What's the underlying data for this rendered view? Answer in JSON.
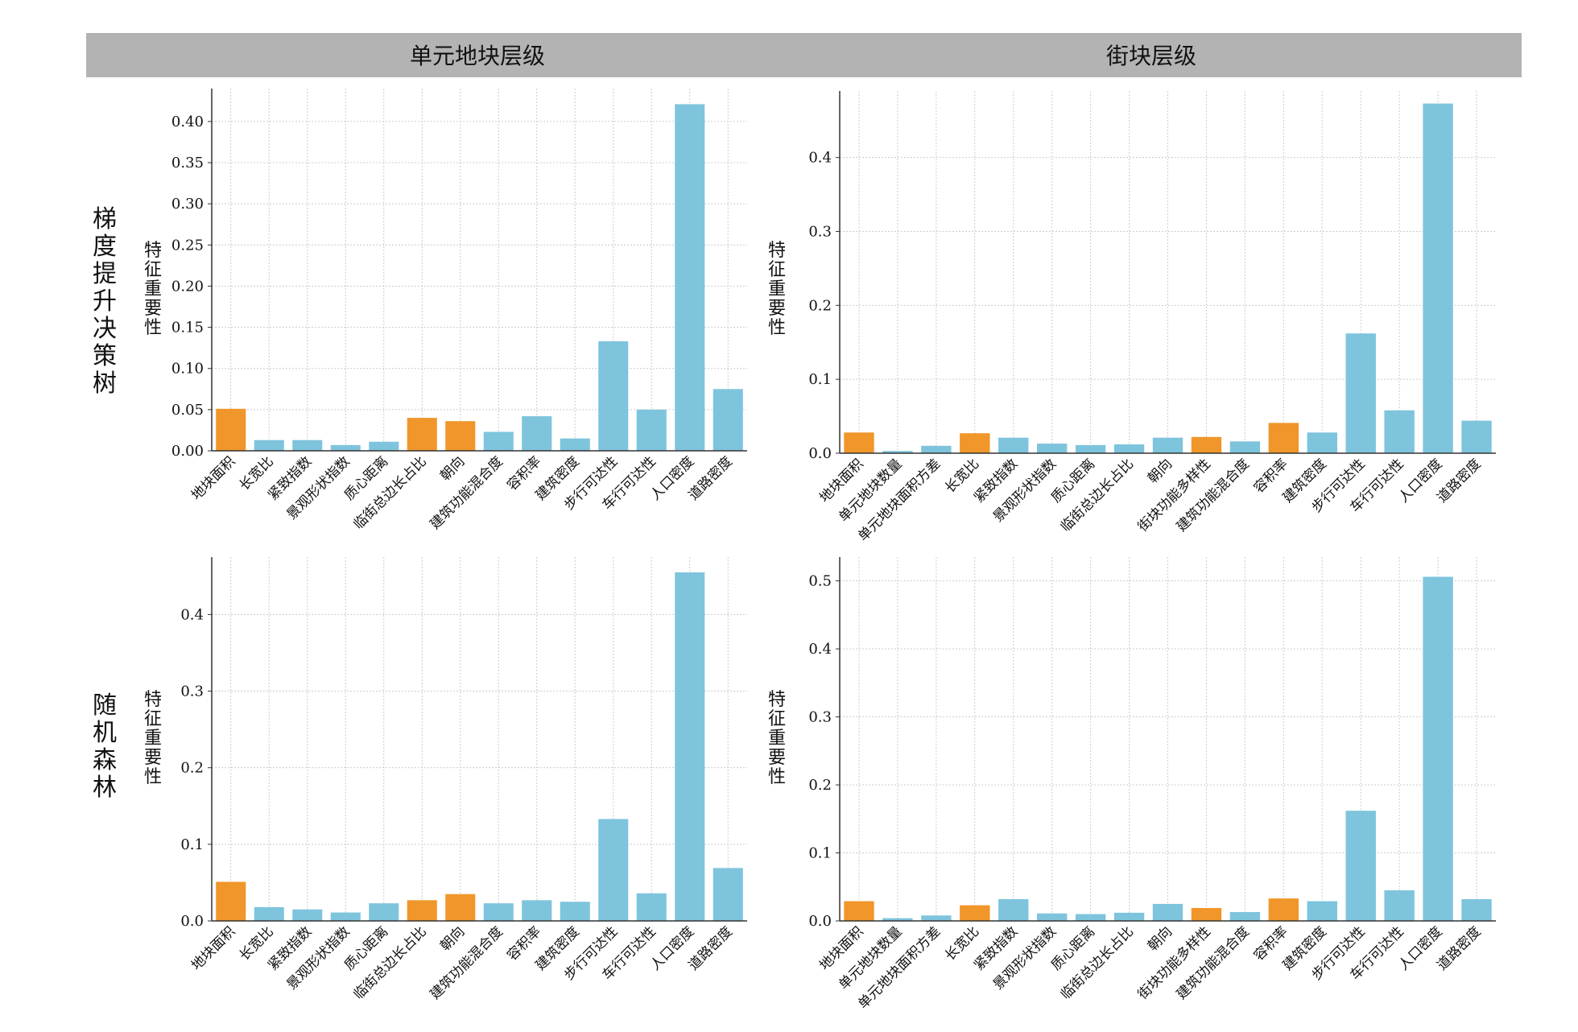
{
  "column_titles": [
    "单元地块层级",
    "街块层级"
  ],
  "row_titles": [
    "梯度提升决策树",
    "随机森林"
  ],
  "colors": {
    "orange": "#f0962a",
    "blue": "#7ec4dc",
    "header": "#b3b3b3",
    "grid": "#cccccc"
  },
  "chart_data": [
    {
      "type": "bar",
      "row": "梯度提升决策树",
      "column": "单元地块层级",
      "ylabel": "特征重要性",
      "ylim": [
        0,
        0.44
      ],
      "yticks": [
        0.0,
        0.05,
        0.1,
        0.15,
        0.2,
        0.25,
        0.3,
        0.35,
        0.4
      ],
      "ytick_labels": [
        "0.00",
        "0.05",
        "0.10",
        "0.15",
        "0.20",
        "0.25",
        "0.30",
        "0.35",
        "0.40"
      ],
      "grid": true,
      "categories": [
        "地块面积",
        "长宽比",
        "紧致指数",
        "景观形状指数",
        "质心距离",
        "临街总边长占比",
        "朝向",
        "建筑功能混合度",
        "容积率",
        "建筑密度",
        "步行可达性",
        "车行可达性",
        "人口密度",
        "道路密度"
      ],
      "values": [
        0.051,
        0.013,
        0.013,
        0.007,
        0.011,
        0.04,
        0.036,
        0.023,
        0.042,
        0.015,
        0.133,
        0.05,
        0.421,
        0.075
      ],
      "colors": [
        "orange",
        "blue",
        "blue",
        "blue",
        "blue",
        "orange",
        "orange",
        "blue",
        "blue",
        "blue",
        "blue",
        "blue",
        "blue",
        "blue"
      ]
    },
    {
      "type": "bar",
      "row": "梯度提升决策树",
      "column": "街块层级",
      "ylabel": "特征重要性",
      "ylim": [
        0,
        0.49
      ],
      "yticks": [
        0.0,
        0.1,
        0.2,
        0.3,
        0.4
      ],
      "ytick_labels": [
        "0.0",
        "0.1",
        "0.2",
        "0.3",
        "0.4"
      ],
      "grid": true,
      "categories": [
        "地块面积",
        "单元地块数量",
        "单元地块面积方差",
        "长宽比",
        "紧致指数",
        "景观形状指数",
        "质心距离",
        "临街总边长占比",
        "朝向",
        "街块功能多样性",
        "建筑功能混合度",
        "容积率",
        "建筑密度",
        "步行可达性",
        "车行可达性",
        "人口密度",
        "道路密度"
      ],
      "values": [
        0.028,
        0.003,
        0.01,
        0.027,
        0.021,
        0.013,
        0.011,
        0.012,
        0.021,
        0.022,
        0.016,
        0.041,
        0.028,
        0.162,
        0.058,
        0.473,
        0.044
      ],
      "colors": [
        "orange",
        "blue",
        "blue",
        "orange",
        "blue",
        "blue",
        "blue",
        "blue",
        "blue",
        "orange",
        "blue",
        "orange",
        "blue",
        "blue",
        "blue",
        "blue",
        "blue"
      ]
    },
    {
      "type": "bar",
      "row": "随机森林",
      "column": "单元地块层级",
      "ylabel": "特征重要性",
      "ylim": [
        0,
        0.475
      ],
      "yticks": [
        0.0,
        0.1,
        0.2,
        0.3,
        0.4
      ],
      "ytick_labels": [
        "0.0",
        "0.1",
        "0.2",
        "0.3",
        "0.4"
      ],
      "grid": true,
      "categories": [
        "地块面积",
        "长宽比",
        "紧致指数",
        "景观形状指数",
        "质心距离",
        "临街总边长占比",
        "朝向",
        "建筑功能混合度",
        "容积率",
        "建筑密度",
        "步行可达性",
        "车行可达性",
        "人口密度",
        "道路密度"
      ],
      "values": [
        0.051,
        0.018,
        0.015,
        0.011,
        0.023,
        0.027,
        0.035,
        0.023,
        0.027,
        0.025,
        0.133,
        0.036,
        0.455,
        0.069
      ],
      "colors": [
        "orange",
        "blue",
        "blue",
        "blue",
        "blue",
        "orange",
        "orange",
        "blue",
        "blue",
        "blue",
        "blue",
        "blue",
        "blue",
        "blue"
      ]
    },
    {
      "type": "bar",
      "row": "随机森林",
      "column": "街块层级",
      "ylabel": "特征重要性",
      "ylim": [
        0,
        0.535
      ],
      "yticks": [
        0.0,
        0.1,
        0.2,
        0.3,
        0.4,
        0.5
      ],
      "ytick_labels": [
        "0.0",
        "0.1",
        "0.2",
        "0.3",
        "0.4",
        "0.5"
      ],
      "grid": true,
      "categories": [
        "地块面积",
        "单元地块数量",
        "单元地块面积方差",
        "长宽比",
        "紧致指数",
        "景观形状指数",
        "质心距离",
        "临街总边长占比",
        "朝向",
        "街块功能多样性",
        "建筑功能混合度",
        "容积率",
        "建筑密度",
        "步行可达性",
        "车行可达性",
        "人口密度",
        "道路密度"
      ],
      "values": [
        0.029,
        0.004,
        0.008,
        0.023,
        0.032,
        0.011,
        0.01,
        0.012,
        0.025,
        0.019,
        0.013,
        0.033,
        0.029,
        0.162,
        0.045,
        0.506,
        0.032
      ],
      "colors": [
        "orange",
        "blue",
        "blue",
        "orange",
        "blue",
        "blue",
        "blue",
        "blue",
        "blue",
        "orange",
        "blue",
        "orange",
        "blue",
        "blue",
        "blue",
        "blue",
        "blue"
      ]
    }
  ]
}
